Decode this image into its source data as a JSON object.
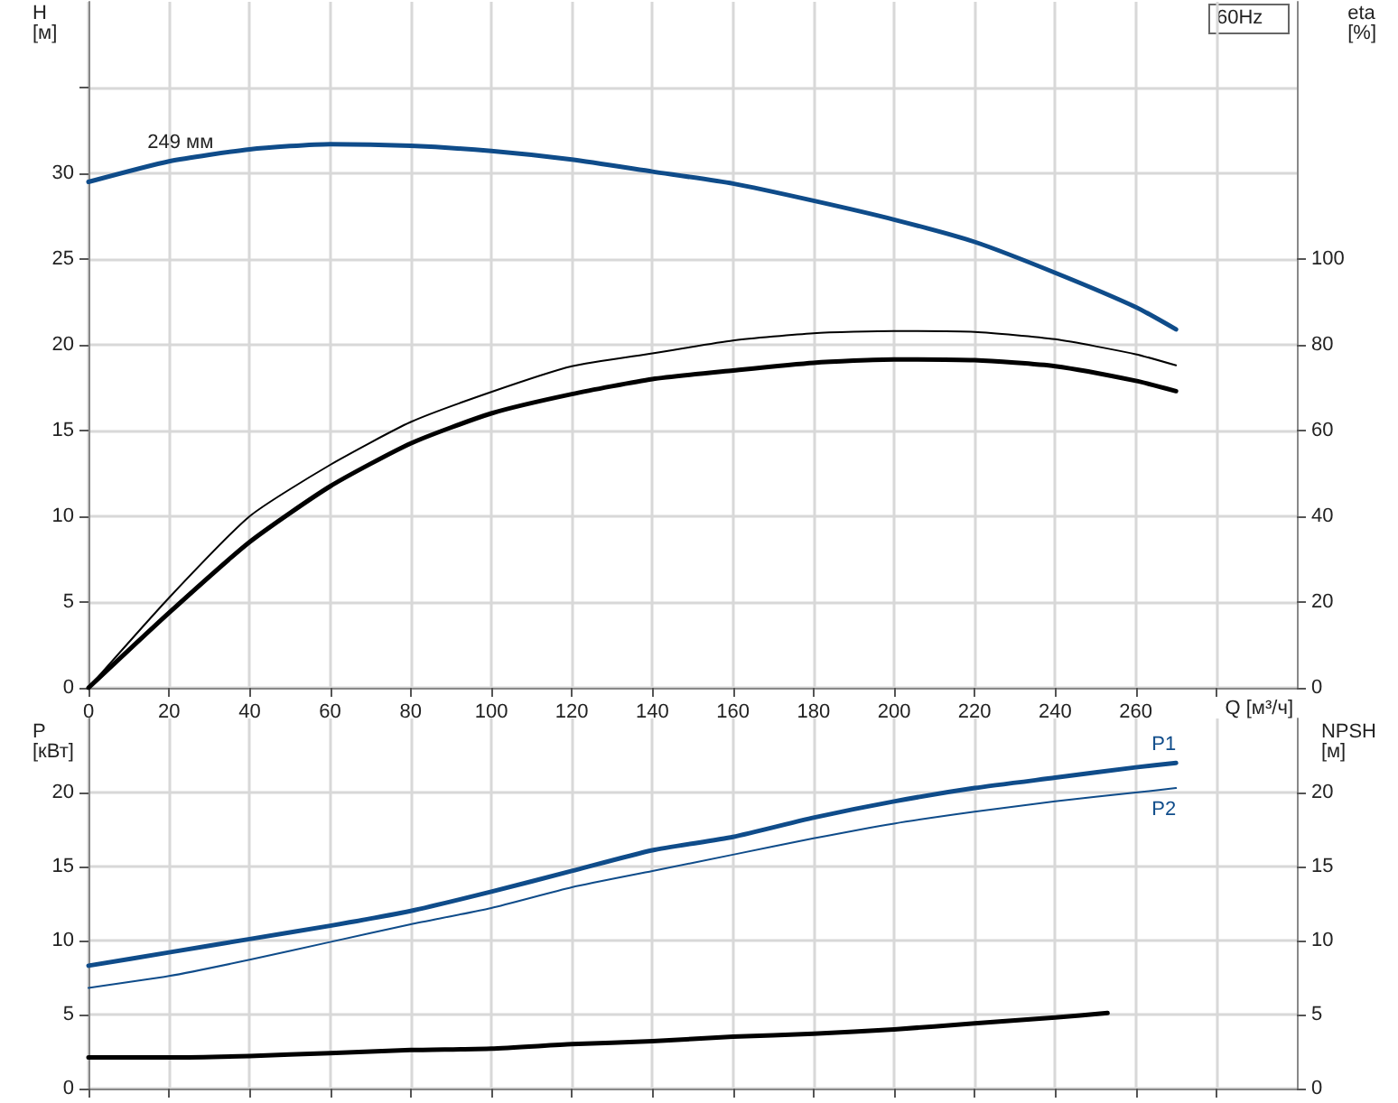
{
  "chart_data": [
    {
      "type": "line",
      "xlabel": "Q [м³/ч]",
      "ylabel": "H\n[м]",
      "y2label": "eta\n[%]",
      "annotations": [
        "60Hz"
      ],
      "xlim": [
        0,
        300
      ],
      "xticks": [
        0,
        20,
        40,
        60,
        80,
        100,
        120,
        140,
        160,
        180,
        200,
        220,
        240,
        260,
        {
          "value": 280,
          "label": null
        }
      ],
      "ylim": [
        0,
        40
      ],
      "yticks": [
        0,
        5,
        10,
        15,
        20,
        25,
        30,
        {
          "value": 35,
          "label": null
        }
      ],
      "y2lim": [
        0,
        160
      ],
      "y2ticks": [
        0,
        20,
        40,
        60,
        80,
        100
      ],
      "grid": true,
      "legend": false,
      "marker": "none",
      "line_style": "solid",
      "series": [
        {
          "name": "249 мм",
          "color": "#0f4c8a",
          "x": [
            0,
            20,
            40,
            60,
            80,
            100,
            120,
            140,
            160,
            180,
            200,
            220,
            240,
            260,
            270
          ],
          "values": [
            29.5,
            30.7,
            31.4,
            31.7,
            31.6,
            31.3,
            30.8,
            30.1,
            29.4,
            28.4,
            27.3,
            26.0,
            24.2,
            22.2,
            20.9
          ]
        },
        {
          "color": "#000000",
          "axis": "y2",
          "x": [
            0,
            20,
            40,
            60,
            80,
            100,
            120,
            140,
            160,
            180,
            200,
            220,
            240,
            260,
            270
          ],
          "values": [
            0,
            21,
            40,
            52,
            62,
            69,
            75,
            78,
            81,
            82.7,
            83.2,
            83,
            81.3,
            77.8,
            75.2
          ]
        },
        {
          "color": "#000000",
          "axis": "y2",
          "x": [
            0,
            20,
            40,
            60,
            80,
            100,
            120,
            140,
            160,
            180,
            200,
            220,
            240,
            260,
            270
          ],
          "values": [
            0,
            17.5,
            34,
            47,
            57,
            64,
            68.5,
            72,
            74,
            75.8,
            76.6,
            76.4,
            75,
            71.6,
            69.2
          ]
        }
      ]
    },
    {
      "type": "line",
      "ylabel": "P\n[кВт]",
      "y2label": "NPSH\n[м]",
      "xlim": [
        0,
        300
      ],
      "xticks": [
        0,
        20,
        40,
        60,
        80,
        100,
        120,
        140,
        160,
        180,
        200,
        220,
        240,
        260,
        {
          "value": 280,
          "label": null
        }
      ],
      "ylim": [
        0,
        25
      ],
      "yticks": [
        0,
        5,
        10,
        15,
        20
      ],
      "y2lim": [
        0,
        25
      ],
      "y2ticks": [
        0,
        5,
        10,
        15,
        20
      ],
      "tick_labels": "y",
      "grid": true,
      "legend": false,
      "marker": "none",
      "line_style": "solid",
      "series": [
        {
          "name": "P1",
          "color": "#0f4c8a",
          "x": [
            0,
            20,
            40,
            60,
            80,
            100,
            120,
            140,
            160,
            180,
            200,
            220,
            240,
            260,
            270
          ],
          "values": [
            8.3,
            9.2,
            10.1,
            11.0,
            12.0,
            13.3,
            14.7,
            16.1,
            17.0,
            18.3,
            19.4,
            20.3,
            21.0,
            21.7,
            22.0
          ]
        },
        {
          "name": "P2",
          "color": "#0f4c8a",
          "x": [
            0,
            20,
            40,
            60,
            80,
            100,
            120,
            140,
            160,
            180,
            200,
            220,
            240,
            260,
            270
          ],
          "values": [
            6.8,
            7.6,
            8.7,
            9.9,
            11.1,
            12.2,
            13.6,
            14.7,
            15.8,
            16.9,
            17.9,
            18.7,
            19.4,
            20.0,
            20.3
          ]
        },
        {
          "color": "#000000",
          "axis": "y2",
          "x": [
            0,
            20,
            40,
            60,
            80,
            100,
            120,
            140,
            160,
            180,
            200,
            220,
            240,
            253
          ],
          "values": [
            2.1,
            2.1,
            2.2,
            2.4,
            2.6,
            2.7,
            3.0,
            3.2,
            3.5,
            3.7,
            4.0,
            4.4,
            4.8,
            5.1
          ]
        }
      ]
    }
  ]
}
